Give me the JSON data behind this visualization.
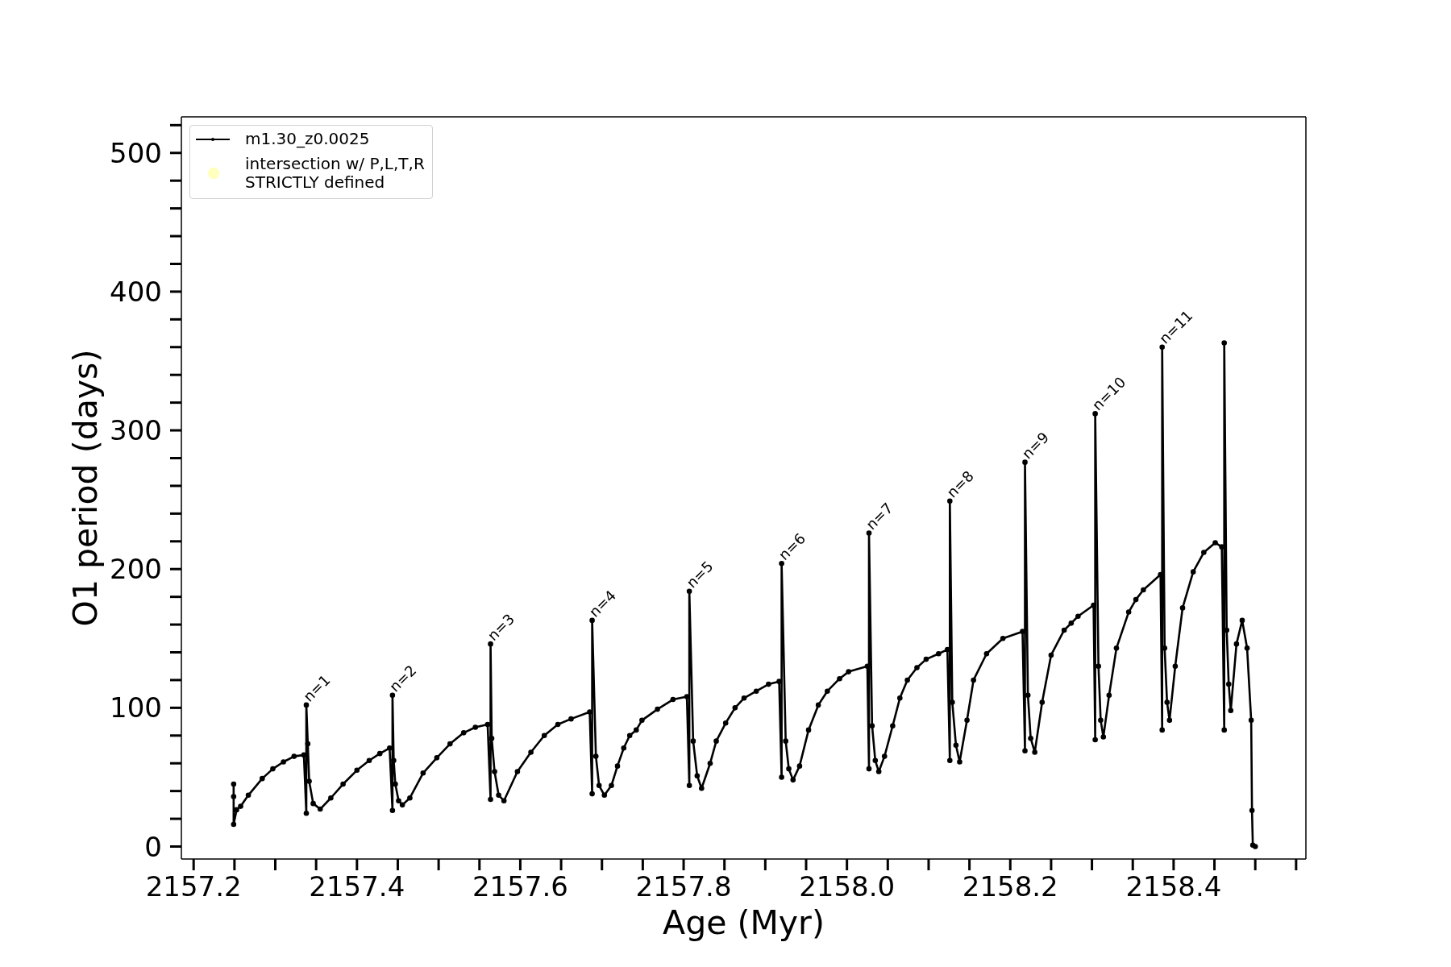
{
  "chart_data": {
    "type": "line",
    "xlabel": "Age (Myr)",
    "ylabel": "O1 period (days)",
    "xlim": [
      2157.185,
      2158.562
    ],
    "ylim": [
      -9,
      526
    ],
    "xticks": [
      2157.2,
      {
        "value": 2157.25,
        "label": null
      },
      {
        "value": 2157.3,
        "label": null
      },
      {
        "value": 2157.35,
        "label": null
      },
      2157.4,
      {
        "value": 2157.45,
        "label": null
      },
      {
        "value": 2157.5,
        "label": null
      },
      {
        "value": 2157.55,
        "label": null
      },
      2157.6,
      {
        "value": 2157.65,
        "label": null
      },
      {
        "value": 2157.7,
        "label": null
      },
      {
        "value": 2157.75,
        "label": null
      },
      2157.8,
      {
        "value": 2157.85,
        "label": null
      },
      {
        "value": 2157.9,
        "label": null
      },
      {
        "value": 2157.95,
        "label": null
      },
      {
        "value": 2158,
        "label": "2158.0"
      },
      {
        "value": 2158.05,
        "label": null
      },
      {
        "value": 2158.1,
        "label": null
      },
      {
        "value": 2158.15,
        "label": null
      },
      2158.2,
      {
        "value": 2158.25,
        "label": null
      },
      {
        "value": 2158.3,
        "label": null
      },
      {
        "value": 2158.35,
        "label": null
      },
      2158.4,
      {
        "value": 2158.45,
        "label": null
      },
      {
        "value": 2158.5,
        "label": null
      },
      {
        "value": 2158.55,
        "label": null
      }
    ],
    "yticks": [
      0,
      {
        "value": 20,
        "label": null
      },
      {
        "value": 40,
        "label": null
      },
      {
        "value": 60,
        "label": null
      },
      {
        "value": 80,
        "label": null
      },
      100,
      {
        "value": 120,
        "label": null
      },
      {
        "value": 140,
        "label": null
      },
      {
        "value": 160,
        "label": null
      },
      {
        "value": 180,
        "label": null
      },
      200,
      {
        "value": 220,
        "label": null
      },
      {
        "value": 240,
        "label": null
      },
      {
        "value": 260,
        "label": null
      },
      {
        "value": 280,
        "label": null
      },
      300,
      {
        "value": 320,
        "label": null
      },
      {
        "value": 340,
        "label": null
      },
      {
        "value": 360,
        "label": null
      },
      {
        "value": 380,
        "label": null
      },
      400,
      {
        "value": 420,
        "label": null
      },
      {
        "value": 440,
        "label": null
      },
      {
        "value": 460,
        "label": null
      },
      {
        "value": 480,
        "label": null
      },
      500,
      {
        "value": 520,
        "label": null
      }
    ],
    "legend": "top left",
    "marker": "circle",
    "series": [
      {
        "name": "m1.30_z0.0025",
        "color": "#000000",
        "x": [
          2157.249,
          2157.249,
          2157.249,
          2157.2526,
          2157.2576,
          2157.267,
          2157.284,
          2157.297,
          2157.31,
          2157.323,
          2157.335,
          2157.338,
          2157.338,
          2157.3398,
          2157.3415,
          2157.3464,
          2157.355,
          2157.368,
          2157.383,
          2157.4,
          2157.415,
          2157.428,
          2157.44,
          2157.4435,
          2157.4435,
          2157.445,
          2157.447,
          2157.451,
          2157.4556,
          2157.4648,
          2157.481,
          2157.4978,
          2157.514,
          2157.5307,
          2157.545,
          2157.56,
          2157.5636,
          2157.5636,
          2157.565,
          2157.5685,
          2157.5735,
          2157.58,
          2157.5965,
          2157.613,
          2157.6294,
          2157.646,
          2157.6622,
          2157.685,
          2157.688,
          2157.688,
          2157.6926,
          2157.6965,
          2157.703,
          2157.7116,
          2157.719,
          2157.7267,
          2157.734,
          2157.742,
          2157.749,
          2157.768,
          2157.787,
          2157.804,
          2157.807,
          2157.807,
          2157.8117,
          2157.8166,
          2157.822,
          2157.8325,
          2157.84,
          2157.8515,
          2157.863,
          2157.874,
          2157.889,
          2157.904,
          2157.917,
          2157.92,
          2157.92,
          2157.925,
          2157.9288,
          2157.934,
          2157.942,
          2157.953,
          2157.965,
          2157.976,
          2157.991,
          2158.002,
          2158.025,
          2158.027,
          2158.027,
          2158.0308,
          2158.0347,
          2158.039,
          2158.046,
          2158.056,
          2158.0648,
          2158.074,
          2158.0857,
          2158.097,
          2158.1122,
          2158.123,
          2158.126,
          2158.126,
          2158.129,
          2158.1335,
          2158.138,
          2158.147,
          2158.155,
          2158.171,
          2158.191,
          2158.215,
          2158.218,
          2158.218,
          2158.2216,
          2158.225,
          2158.23,
          2158.239,
          2158.25,
          2158.266,
          2158.2746,
          2158.283,
          2158.302,
          2158.304,
          2158.304,
          2158.308,
          2158.3107,
          2158.314,
          2158.321,
          2158.33,
          2158.345,
          2158.3538,
          2158.363,
          2158.384,
          2158.386,
          2158.386,
          2158.389,
          2158.392,
          2158.395,
          2158.402,
          2158.411,
          2158.424,
          2158.437,
          2158.451,
          2158.459,
          2158.462,
          2158.462,
          2158.465,
          2158.4675,
          2158.47,
          2158.477,
          2158.484,
          2158.49,
          2158.495,
          2158.496,
          2158.497,
          2158.5
        ],
        "values": [
          36,
          45,
          16,
          26.5,
          29,
          37,
          49,
          56,
          61,
          65,
          66,
          24,
          102,
          74,
          47,
          31,
          27,
          35,
          45,
          55,
          62,
          67,
          71,
          26,
          109,
          62,
          45,
          33,
          30,
          35,
          53,
          64,
          74,
          82,
          86,
          88,
          34,
          146,
          78,
          54,
          37,
          33,
          54,
          68,
          80,
          88,
          92,
          97,
          38,
          163,
          65,
          44,
          37,
          44,
          58,
          71,
          80,
          84,
          91,
          99,
          106,
          108,
          44,
          184,
          76,
          51,
          42,
          60,
          76,
          89,
          100,
          107,
          112,
          117,
          119,
          50,
          204,
          76,
          56,
          48,
          58,
          84,
          102,
          112,
          121,
          126,
          130,
          56,
          226,
          87,
          62,
          54,
          65,
          87,
          107,
          120,
          129,
          135,
          139,
          142,
          62,
          249,
          104,
          73,
          61,
          91,
          120,
          139,
          150,
          155,
          69,
          277,
          109,
          78,
          68,
          104,
          138,
          156,
          161,
          166,
          174,
          77,
          312,
          130,
          91,
          79,
          109,
          143,
          169,
          178,
          185,
          196,
          84,
          360,
          143,
          104,
          91,
          130,
          172,
          198,
          212,
          219,
          216,
          84,
          363,
          156,
          117,
          98,
          146,
          163,
          143,
          91,
          26,
          1,
          0
        ]
      },
      {
        "name": "intersection w/ P,L,T,R\nSTRICTLY defined",
        "type": "scatter",
        "color": "#ffffbf"
      }
    ],
    "annotations": [
      {
        "text": "n=1",
        "x": 2157.338,
        "y": 102
      },
      {
        "text": "n=2",
        "x": 2157.4435,
        "y": 109
      },
      {
        "text": "n=3",
        "x": 2157.5636,
        "y": 146
      },
      {
        "text": "n=4",
        "x": 2157.688,
        "y": 163
      },
      {
        "text": "n=5",
        "x": 2157.807,
        "y": 184
      },
      {
        "text": "n=6",
        "x": 2157.92,
        "y": 204
      },
      {
        "text": "n=7",
        "x": 2158.027,
        "y": 226
      },
      {
        "text": "n=8",
        "x": 2158.126,
        "y": 249
      },
      {
        "text": "n=9",
        "x": 2158.218,
        "y": 277
      },
      {
        "text": "n=10",
        "x": 2158.304,
        "y": 312
      },
      {
        "text": "n=11",
        "x": 2158.386,
        "y": 360
      }
    ]
  }
}
